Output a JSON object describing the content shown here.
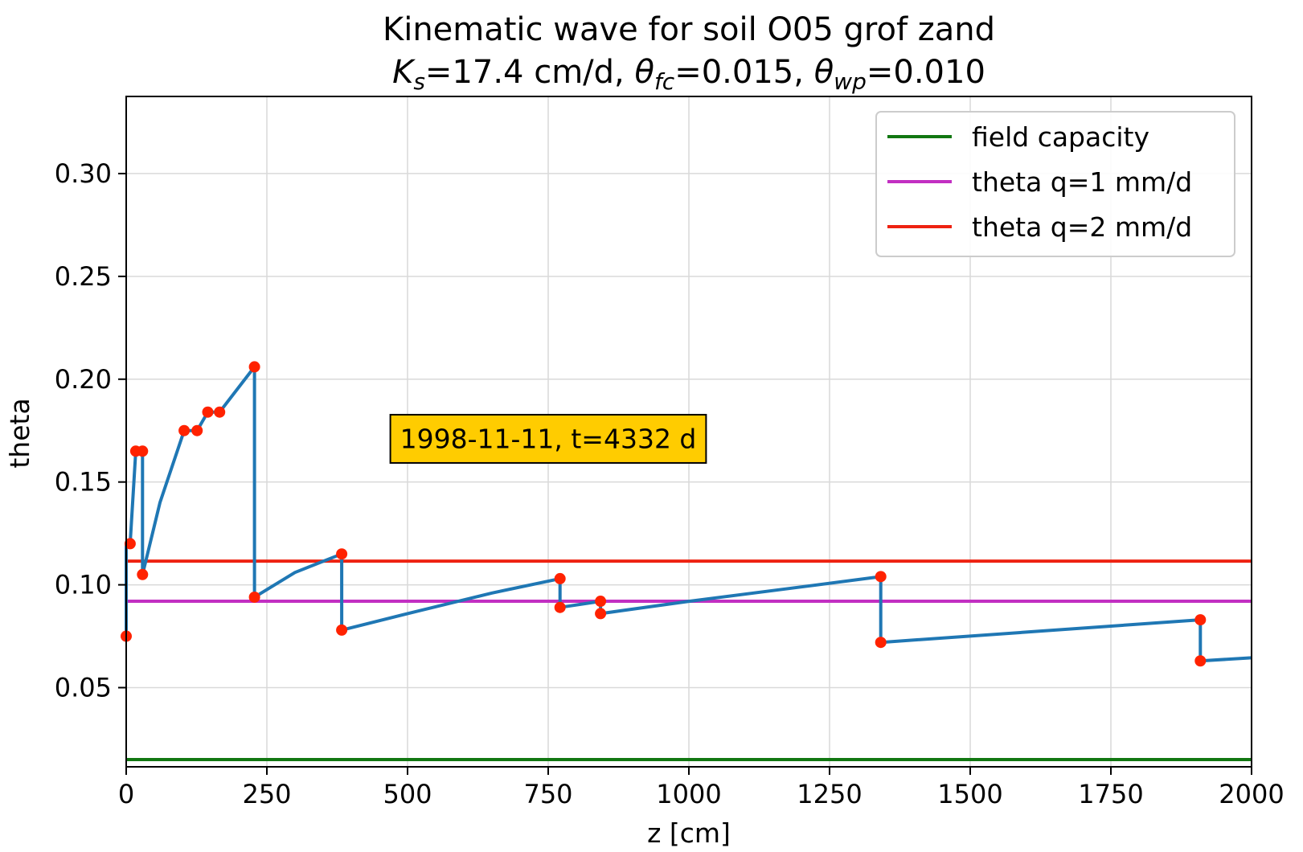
{
  "chart_data": {
    "type": "line",
    "title": "Kinematic wave for soil O05 grof zand",
    "subtitle": {
      "prefix": "K",
      "ks_sub": "s",
      "ks_text": "=17.4 cm/d, ",
      "fc_sym": "θ",
      "fc_sub": "fc",
      "fc_text": "=0.015, ",
      "wp_sym": "θ",
      "wp_sub": "wp",
      "wp_text": "=0.010"
    },
    "xlabel": "z [cm]",
    "ylabel": "theta",
    "xlim": [
      0,
      2000
    ],
    "ylim": [
      0.0115,
      0.3375
    ],
    "xticks": [
      0,
      250,
      500,
      750,
      1000,
      1250,
      1500,
      1750,
      2000
    ],
    "yticks": [
      0.05,
      0.1,
      0.15,
      0.2,
      0.25,
      0.3
    ],
    "xtick_labels": [
      "0",
      "250",
      "500",
      "750",
      "1000",
      "1250",
      "1500",
      "1750",
      "2000"
    ],
    "ytick_labels": [
      "0.05",
      "0.10",
      "0.15",
      "0.20",
      "0.25",
      "0.30"
    ],
    "grid": true,
    "legend_position": "top-right",
    "horizontal_lines": [
      {
        "name": "field capacity",
        "y": 0.015,
        "color": "#117711"
      },
      {
        "name": "theta q=1 mm/d",
        "y": 0.092,
        "color": "#c22fc2"
      },
      {
        "name": "theta q=2 mm/d",
        "y": 0.1115,
        "color": "#ee2211"
      }
    ],
    "profile": {
      "color": "#1f77b4",
      "x": [
        0,
        0,
        7,
        17,
        29,
        29,
        29,
        60,
        103,
        126,
        145,
        166,
        228,
        228,
        300,
        383,
        383,
        500,
        650,
        771,
        771,
        843,
        843,
        1000,
        1200,
        1341,
        1341,
        1600,
        1909,
        1909,
        2000
      ],
      "y": [
        0.075,
        0.12,
        0.12,
        0.165,
        0.165,
        0.165,
        0.105,
        0.14,
        0.175,
        0.175,
        0.184,
        0.184,
        0.206,
        0.094,
        0.106,
        0.115,
        0.078,
        0.086,
        0.096,
        0.103,
        0.089,
        0.092,
        0.086,
        0.092,
        0.099,
        0.104,
        0.072,
        0.077,
        0.083,
        0.063,
        0.0645
      ]
    },
    "markers": {
      "color": "#ff2200",
      "x": [
        0,
        7,
        17,
        29,
        29,
        103,
        126,
        145,
        166,
        228,
        228,
        383,
        383,
        771,
        771,
        843,
        843,
        1341,
        1341,
        1909,
        1909
      ],
      "y": [
        0.075,
        0.12,
        0.165,
        0.165,
        0.105,
        0.175,
        0.175,
        0.184,
        0.184,
        0.206,
        0.094,
        0.115,
        0.078,
        0.103,
        0.089,
        0.092,
        0.086,
        0.104,
        0.072,
        0.083,
        0.063
      ]
    },
    "annotation": {
      "text": "1998-11-11, t=4332 d",
      "x": 750,
      "y": 0.171,
      "background": "#ffcc00"
    }
  }
}
